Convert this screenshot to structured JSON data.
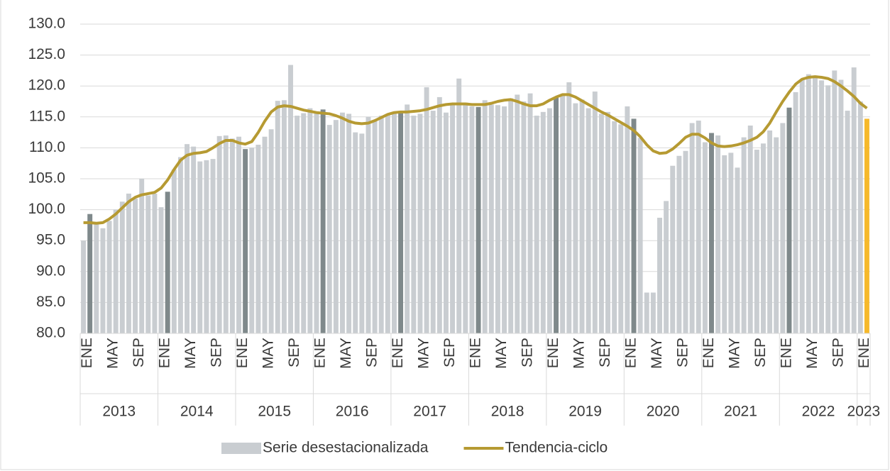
{
  "chart_data": {
    "type": "bar_line",
    "categories": [
      "ENE",
      null,
      null,
      null,
      "MAY",
      null,
      null,
      null,
      "SEP",
      null,
      null,
      null,
      "ENE",
      null,
      null,
      null,
      "MAY",
      null,
      null,
      null,
      "SEP",
      null,
      null,
      null,
      "ENE",
      null,
      null,
      null,
      "MAY",
      null,
      null,
      null,
      "SEP",
      null,
      null,
      null,
      "ENE",
      null,
      null,
      null,
      "MAY",
      null,
      null,
      null,
      "SEP",
      null,
      null,
      null,
      "ENE",
      null,
      null,
      null,
      "MAY",
      null,
      null,
      null,
      "SEP",
      null,
      null,
      null,
      "ENE",
      null,
      null,
      null,
      "MAY",
      null,
      null,
      null,
      "SEP",
      null,
      null,
      null,
      "ENE",
      null,
      null,
      null,
      "MAY",
      null,
      null,
      null,
      "SEP",
      null,
      null,
      null,
      "ENE",
      null,
      null,
      null,
      "MAY",
      null,
      null,
      null,
      "SEP",
      null,
      null,
      null,
      "ENE",
      null,
      null,
      null,
      "MAY",
      null,
      null,
      null,
      "SEP",
      null,
      null,
      null,
      "ENE",
      null,
      null,
      null,
      "MAY",
      null,
      null,
      null,
      "SEP",
      null,
      null,
      null,
      "ENE",
      null
    ],
    "years": [
      "2013",
      "2014",
      "2015",
      "2016",
      "2017",
      "2018",
      "2019",
      "2020",
      "2021",
      "2022",
      "2023"
    ],
    "series": [
      {
        "name": "Serie desestacionalizada",
        "kind": "bar",
        "color": "#c9cdd1",
        "values": [
          95.0,
          99.3,
          97.6,
          97.0,
          98.2,
          100.0,
          101.3,
          102.6,
          101.8,
          105.0,
          102.3,
          102.6,
          100.4,
          102.9,
          106.5,
          108.5,
          110.6,
          110.2,
          107.8,
          108.0,
          108.2,
          111.9,
          112.0,
          111.5,
          111.8,
          109.8,
          110.0,
          110.5,
          111.8,
          113.0,
          117.6,
          117.7,
          123.4,
          115.2,
          115.6,
          116.4,
          115.8,
          116.2,
          113.7,
          114.5,
          115.7,
          115.5,
          112.5,
          112.3,
          115.0,
          114.5,
          115.2,
          115.5,
          115.7,
          115.6,
          117.0,
          115.2,
          115.5,
          119.8,
          116.0,
          118.2,
          115.7,
          117.0,
          121.2,
          117.3,
          116.7,
          116.6,
          117.7,
          117.0,
          116.9,
          116.7,
          118.0,
          118.6,
          117.5,
          118.8,
          115.2,
          115.8,
          116.4,
          118.1,
          118.5,
          120.6,
          117.2,
          117.8,
          116.4,
          119.1,
          115.5,
          115.8,
          114.3,
          113.8,
          116.7,
          114.7,
          111.6,
          86.6,
          86.6,
          98.7,
          101.4,
          107.1,
          108.7,
          109.5,
          114.0,
          114.4,
          110.9,
          112.4,
          112.0,
          108.8,
          109.2,
          106.8,
          111.7,
          113.6,
          109.7,
          110.7,
          112.8,
          111.7,
          114.0,
          116.5,
          119.0,
          121.0,
          121.9,
          121.7,
          120.9,
          120.1,
          122.5,
          121.0,
          116.0,
          123.0,
          117.5,
          114.7
        ],
        "colors": [
          "#c9cdd1",
          "#7f898b",
          "#c9cdd1",
          "#c9cdd1",
          "#c9cdd1",
          "#c9cdd1",
          "#c9cdd1",
          "#c9cdd1",
          "#c9cdd1",
          "#c9cdd1",
          "#c9cdd1",
          "#c9cdd1",
          "#c9cdd1",
          "#7f898b",
          "#c9cdd1",
          "#c9cdd1",
          "#c9cdd1",
          "#c9cdd1",
          "#c9cdd1",
          "#c9cdd1",
          "#c9cdd1",
          "#c9cdd1",
          "#c9cdd1",
          "#c9cdd1",
          "#c9cdd1",
          "#7f898b",
          "#c9cdd1",
          "#c9cdd1",
          "#c9cdd1",
          "#c9cdd1",
          "#c9cdd1",
          "#c9cdd1",
          "#c9cdd1",
          "#c9cdd1",
          "#c9cdd1",
          "#c9cdd1",
          "#c9cdd1",
          "#7f898b",
          "#c9cdd1",
          "#c9cdd1",
          "#c9cdd1",
          "#c9cdd1",
          "#c9cdd1",
          "#c9cdd1",
          "#c9cdd1",
          "#c9cdd1",
          "#c9cdd1",
          "#c9cdd1",
          "#c9cdd1",
          "#7f898b",
          "#c9cdd1",
          "#c9cdd1",
          "#c9cdd1",
          "#c9cdd1",
          "#c9cdd1",
          "#c9cdd1",
          "#c9cdd1",
          "#c9cdd1",
          "#c9cdd1",
          "#c9cdd1",
          "#c9cdd1",
          "#7f898b",
          "#c9cdd1",
          "#c9cdd1",
          "#c9cdd1",
          "#c9cdd1",
          "#c9cdd1",
          "#c9cdd1",
          "#c9cdd1",
          "#c9cdd1",
          "#c9cdd1",
          "#c9cdd1",
          "#c9cdd1",
          "#7f898b",
          "#c9cdd1",
          "#c9cdd1",
          "#c9cdd1",
          "#c9cdd1",
          "#c9cdd1",
          "#c9cdd1",
          "#c9cdd1",
          "#c9cdd1",
          "#c9cdd1",
          "#c9cdd1",
          "#c9cdd1",
          "#7f898b",
          "#c9cdd1",
          "#c9cdd1",
          "#c9cdd1",
          "#c9cdd1",
          "#c9cdd1",
          "#c9cdd1",
          "#c9cdd1",
          "#c9cdd1",
          "#c9cdd1",
          "#c9cdd1",
          "#c9cdd1",
          "#7f898b",
          "#c9cdd1",
          "#c9cdd1",
          "#c9cdd1",
          "#c9cdd1",
          "#c9cdd1",
          "#c9cdd1",
          "#c9cdd1",
          "#c9cdd1",
          "#c9cdd1",
          "#c9cdd1",
          "#c9cdd1",
          "#7f898b",
          "#c9cdd1",
          "#c9cdd1",
          "#c9cdd1",
          "#c9cdd1",
          "#c9cdd1",
          "#c9cdd1",
          "#c9cdd1",
          "#c9cdd1",
          "#c9cdd1",
          "#c9cdd1",
          "#c9cdd1",
          "#f6b92b"
        ]
      },
      {
        "name": "Tendencia-ciclo",
        "kind": "line",
        "color": "#b69a32",
        "values": [
          97.9,
          97.9,
          97.8,
          97.9,
          98.5,
          99.3,
          100.3,
          101.3,
          102.0,
          102.4,
          102.6,
          102.8,
          103.5,
          104.8,
          106.5,
          108.0,
          108.8,
          109.1,
          109.2,
          109.4,
          110.0,
          110.7,
          111.2,
          111.2,
          110.8,
          110.6,
          111.0,
          112.5,
          114.3,
          115.8,
          116.6,
          116.8,
          116.7,
          116.4,
          116.1,
          115.9,
          115.7,
          115.6,
          115.5,
          115.2,
          114.8,
          114.3,
          114.0,
          113.9,
          114.0,
          114.4,
          114.9,
          115.4,
          115.7,
          115.8,
          115.8,
          115.9,
          116.0,
          116.2,
          116.5,
          116.8,
          117.0,
          117.1,
          117.1,
          117.1,
          117.0,
          117.0,
          117.0,
          117.2,
          117.5,
          117.7,
          117.8,
          117.5,
          117.1,
          116.8,
          116.8,
          117.1,
          117.7,
          118.2,
          118.6,
          118.6,
          118.2,
          117.6,
          117.0,
          116.4,
          115.8,
          115.3,
          114.7,
          114.1,
          113.5,
          112.8,
          111.8,
          110.5,
          109.5,
          109.1,
          109.2,
          109.8,
          110.7,
          111.7,
          112.2,
          112.2,
          111.6,
          110.8,
          110.3,
          110.2,
          110.3,
          110.5,
          110.8,
          111.2,
          111.7,
          112.6,
          114.0,
          115.8,
          117.5,
          119.0,
          120.3,
          121.1,
          121.4,
          121.5,
          121.4,
          121.2,
          120.7,
          120.0,
          119.2,
          118.3,
          117.2,
          116.4
        ]
      }
    ],
    "ylim": [
      80,
      130
    ],
    "yticks": [
      {
        "value": 80,
        "label": "80.0"
      },
      {
        "value": 85,
        "label": "85.0"
      },
      {
        "value": 90,
        "label": "90.0"
      },
      {
        "value": 95,
        "label": "95.0"
      },
      {
        "value": 100,
        "label": "100.0"
      },
      {
        "value": 105,
        "label": "105.0"
      },
      {
        "value": 110,
        "label": "110.0"
      },
      {
        "value": 115,
        "label": "115.0"
      },
      {
        "value": 120,
        "label": "120.0"
      },
      {
        "value": 125,
        "label": "125.0"
      },
      {
        "value": 130,
        "label": "130.0"
      }
    ],
    "grid": true,
    "legend": "bottom"
  }
}
